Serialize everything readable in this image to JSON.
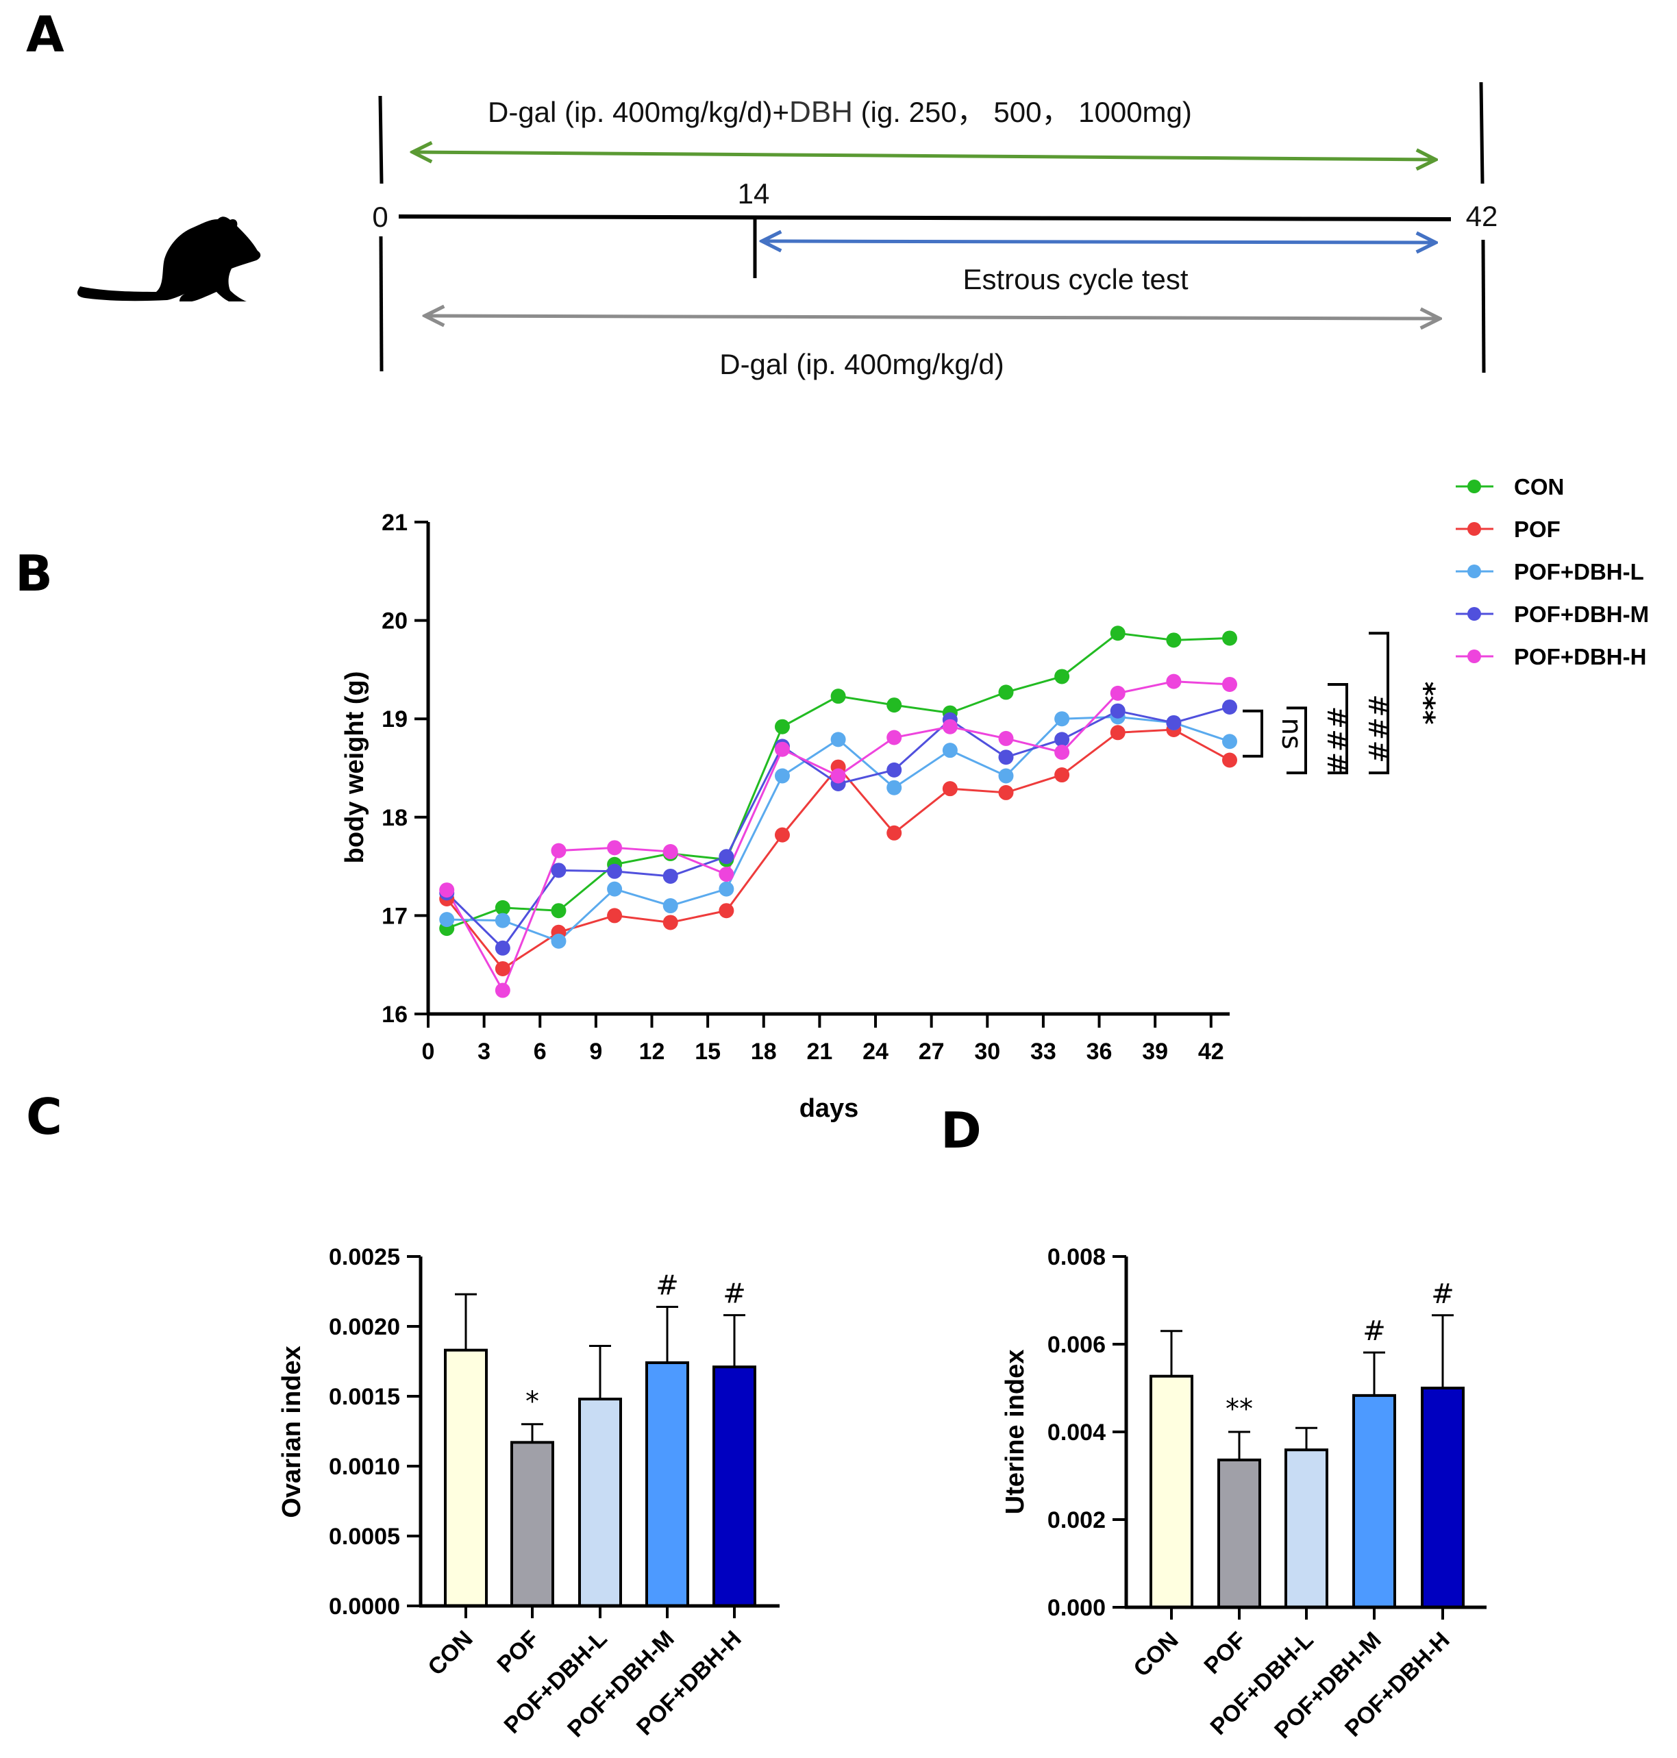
{
  "panels": {
    "a": "A",
    "b": "B",
    "c": "C",
    "d": "D"
  },
  "timeline": {
    "top_label_a": "D-gal (ip. 400mg/kg/d)+",
    "top_label_b": "DBH",
    "top_label_c": " (ig. 250， 500， 1000mg)",
    "start": "0",
    "mid": "14",
    "end": "42",
    "estrous_label": "Estrous cycle  test",
    "bottom_label": "D-gal (ip. 400mg/kg/d)",
    "colors": {
      "green": "#5a9a33",
      "blue": "#4472c4",
      "gray": "#8c8c8c"
    }
  },
  "chart_data": [
    {
      "type": "line",
      "panel": "B",
      "xlabel": "days",
      "ylabel": "body weight (g)",
      "xlim": [
        0,
        43
      ],
      "ylim": [
        16,
        21
      ],
      "xticks": [
        0,
        3,
        6,
        9,
        12,
        15,
        18,
        21,
        24,
        27,
        30,
        33,
        36,
        39,
        42
      ],
      "yticks": [
        16,
        17,
        18,
        19,
        20,
        21
      ],
      "x": [
        1,
        4,
        7,
        10,
        13,
        16,
        19,
        22,
        25,
        28,
        31,
        34,
        37,
        40,
        43
      ],
      "series": [
        {
          "name": "CON",
          "color": "#22bb22",
          "values": [
            16.87,
            17.08,
            17.05,
            17.52,
            17.63,
            17.57,
            18.92,
            19.23,
            19.14,
            19.06,
            19.27,
            19.43,
            19.87,
            19.8,
            19.82
          ]
        },
        {
          "name": "POF",
          "color": "#ee3b3b",
          "values": [
            17.17,
            16.46,
            16.83,
            17.0,
            16.93,
            17.05,
            17.82,
            18.51,
            17.84,
            18.29,
            18.25,
            18.43,
            18.86,
            18.89,
            18.58
          ]
        },
        {
          "name": "POF+DBH-L",
          "color": "#5aaaee",
          "values": [
            16.96,
            16.95,
            16.74,
            17.27,
            17.1,
            17.27,
            18.42,
            18.79,
            18.3,
            18.68,
            18.42,
            19.0,
            19.02,
            18.96,
            18.77
          ]
        },
        {
          "name": "POF+DBH-M",
          "color": "#5050dd",
          "values": [
            17.23,
            16.67,
            17.46,
            17.45,
            17.4,
            17.6,
            18.72,
            18.34,
            18.48,
            18.99,
            18.61,
            18.79,
            19.08,
            18.96,
            19.12
          ]
        },
        {
          "name": "POF+DBH-H",
          "color": "#ee44dd",
          "values": [
            17.26,
            16.24,
            17.66,
            17.69,
            17.65,
            17.42,
            18.69,
            18.42,
            18.81,
            18.92,
            18.8,
            18.66,
            19.26,
            19.38,
            19.35
          ]
        }
      ],
      "significance": [
        "ns",
        "###",
        "###",
        "***"
      ]
    },
    {
      "type": "bar",
      "panel": "C",
      "ylabel": "Ovarian index",
      "ylim": [
        0,
        0.0025
      ],
      "yticks": [
        "0.0000",
        "0.0005",
        "0.0010",
        "0.0015",
        "0.0020",
        "0.0025"
      ],
      "categories": [
        "CON",
        "POF",
        "POF+DBH-L",
        "POF+DBH-M",
        "POF+DBH-H"
      ],
      "values": [
        0.00183,
        0.00117,
        0.00148,
        0.00174,
        0.00171
      ],
      "errors": [
        0.0004,
        0.00013,
        0.00038,
        0.0004,
        0.00037
      ],
      "colors": [
        "#ffffe0",
        "#a0a0a8",
        "#c8dcf4",
        "#4d9aff",
        "#0000c0"
      ],
      "annotations": [
        "",
        "*",
        "",
        "#",
        "#"
      ]
    },
    {
      "type": "bar",
      "panel": "D",
      "ylabel": "Uterine index",
      "ylim": [
        0,
        0.008
      ],
      "yticks": [
        "0.000",
        "0.002",
        "0.004",
        "0.006",
        "0.008"
      ],
      "categories": [
        "CON",
        "POF",
        "POF+DBH-L",
        "POF+DBH-M",
        "POF+DBH-H"
      ],
      "values": [
        0.00527,
        0.00336,
        0.00359,
        0.00483,
        0.005
      ],
      "errors": [
        0.00103,
        0.00064,
        0.0005,
        0.00098,
        0.00166
      ],
      "colors": [
        "#ffffe0",
        "#a0a0a8",
        "#c8dcf4",
        "#4d9aff",
        "#0000c0"
      ],
      "annotations": [
        "",
        "**",
        "",
        "#",
        "#"
      ]
    }
  ]
}
